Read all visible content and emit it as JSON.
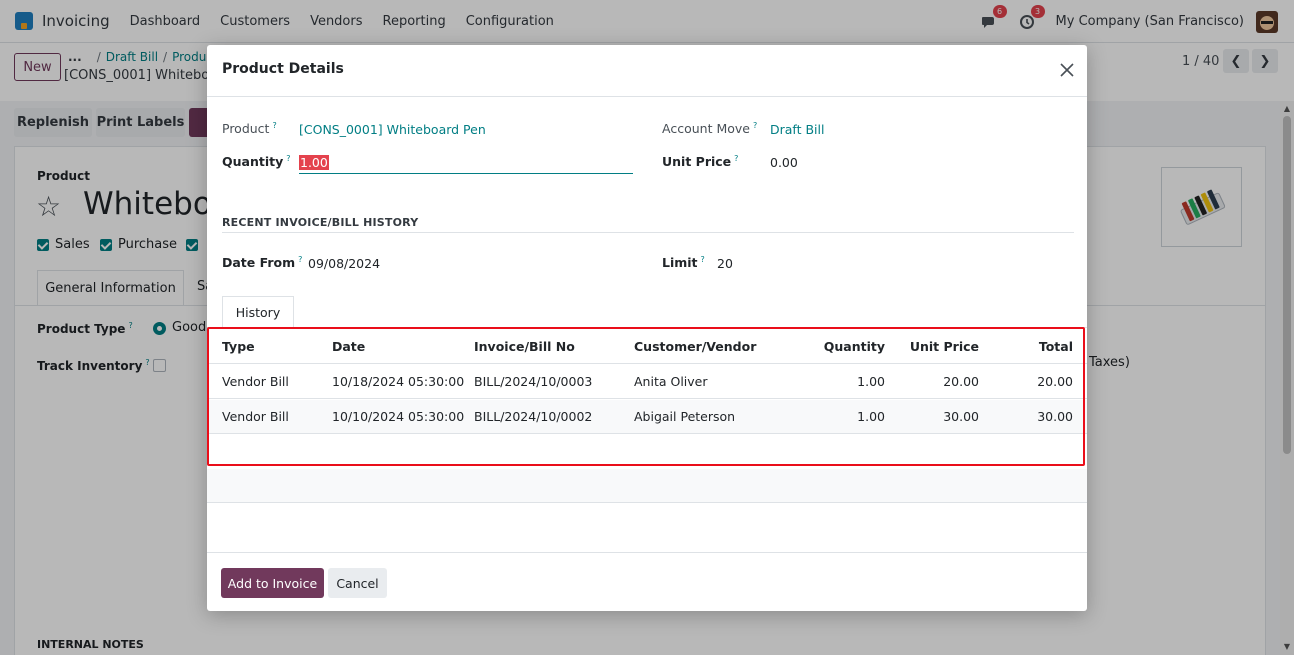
{
  "navbar": {
    "app_name": "Invoicing",
    "menus": [
      "Dashboard",
      "Customers",
      "Vendors",
      "Reporting",
      "Configuration"
    ],
    "messages_badge": "6",
    "activities_badge": "3",
    "company": "My Company (San Francisco)"
  },
  "control_panel": {
    "new_label": "New",
    "breadcrumb_dots": "...",
    "breadcrumb_parent": "Draft Bill",
    "breadcrumb_product": "Produc",
    "breadcrumb_current": "[CONS_0001] Whiteboard",
    "pager": "1 / 40",
    "replenish_label": "Replenish",
    "print_labels_label": "Print Labels"
  },
  "background_form": {
    "product_label": "Product",
    "product_name": "Whiteboa",
    "sales_label": "Sales",
    "purchase_label": "Purchase",
    "tab_general": "General Information",
    "tab_partial": "Sa",
    "product_type_label": "Product Type",
    "product_type_value": "Goods",
    "track_inventory_label": "Track Inventory",
    "taxes_text": "Taxes)",
    "internal_notes": "INTERNAL NOTES"
  },
  "modal": {
    "title": "Product Details",
    "product_label": "Product",
    "product_value": "[CONS_0001] Whiteboard Pen",
    "account_move_label": "Account Move",
    "account_move_value": "Draft Bill",
    "quantity_label": "Quantity",
    "quantity_value": "1.00",
    "unit_price_label": "Unit Price",
    "unit_price_value": "0.00",
    "section_title": "RECENT INVOICE/BILL HISTORY",
    "date_from_label": "Date From",
    "date_from_value": "09/08/2024",
    "limit_label": "Limit",
    "limit_value": "20",
    "tab_history": "History",
    "table": {
      "headers": {
        "type": "Type",
        "date": "Date",
        "number": "Invoice/Bill No",
        "partner": "Customer/Vendor",
        "quantity": "Quantity",
        "unit_price": "Unit Price",
        "total": "Total"
      },
      "rows": [
        {
          "type": "Vendor Bill",
          "date": "10/18/2024 05:30:00",
          "number": "BILL/2024/10/0003",
          "partner": "Anita Oliver",
          "quantity": "1.00",
          "unit_price": "20.00",
          "total": "20.00"
        },
        {
          "type": "Vendor Bill",
          "date": "10/10/2024 05:30:00",
          "number": "BILL/2024/10/0002",
          "partner": "Abigail Peterson",
          "quantity": "1.00",
          "unit_price": "30.00",
          "total": "30.00"
        }
      ]
    },
    "add_button": "Add to Invoice",
    "cancel_button": "Cancel"
  },
  "colors": {
    "brand": "#71395c",
    "link": "#017e84",
    "highlight": "#ea0e1a"
  },
  "icons": {
    "close": "close-icon",
    "star": "star-icon",
    "chat": "chat-icon",
    "clock": "clock-icon",
    "pager_prev": "chevron-left-icon",
    "pager_next": "chevron-right-icon"
  }
}
